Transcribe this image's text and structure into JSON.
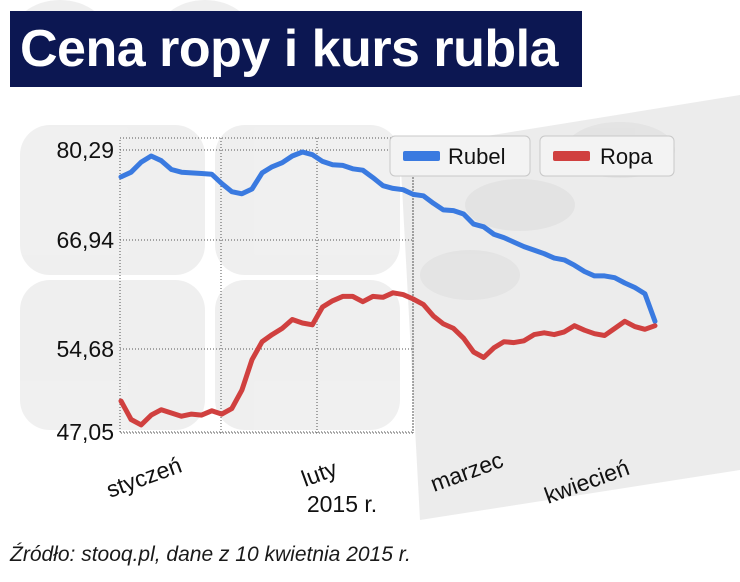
{
  "title": "Cena ropy i kurs rubla",
  "source": "Źródło: stooq.pl, dane z 10 kwietnia 2015 r.",
  "colors": {
    "rubel": "#3a7ae0",
    "ropa": "#d0403f",
    "title_bg": "#0c1752"
  },
  "chart_data": {
    "type": "line",
    "title": "Cena ropy i kurs rubla",
    "xlabel": "2015 r.",
    "ylabel": "",
    "x_ticks": [
      "styczeń",
      "luty",
      "marzec",
      "kwiecień"
    ],
    "y_ticks": [
      "80,29",
      "66,94",
      "54,68",
      "47,05"
    ],
    "legend": {
      "placement": "top-right",
      "entries": [
        "Rubel",
        "Ropa"
      ]
    },
    "grid": true,
    "series": [
      {
        "name": "Rubel",
        "color": "#3a7ae0",
        "values": [
          76.3,
          77.0,
          78.5,
          79.4,
          78.7,
          77.4,
          77.0,
          76.9,
          76.8,
          76.7,
          75.3,
          74.1,
          73.8,
          74.5,
          76.9,
          77.8,
          78.4,
          79.4,
          80.0,
          79.6,
          78.6,
          78.1,
          78.0,
          77.5,
          77.3,
          76.2,
          75.0,
          74.6,
          74.4,
          73.7,
          73.5,
          72.4,
          71.4,
          71.3,
          70.8,
          69.3,
          68.9,
          67.8,
          67.3,
          66.7,
          66.2,
          65.8,
          65.4,
          64.9,
          64.7,
          64.1,
          63.4,
          62.9,
          62.9,
          62.7,
          62.1,
          61.6,
          60.9,
          57.8
        ]
      },
      {
        "name": "Ropa",
        "color": "#d0403f",
        "values": [
          49.9,
          48.2,
          47.7,
          48.6,
          49.1,
          48.8,
          48.5,
          48.7,
          48.6,
          49.0,
          48.7,
          49.2,
          50.9,
          53.7,
          55.5,
          56.3,
          57.0,
          58.0,
          57.6,
          57.4,
          59.4,
          60.1,
          60.6,
          60.6,
          60.0,
          60.6,
          60.5,
          61.0,
          60.8,
          60.3,
          59.7,
          58.4,
          57.5,
          57.0,
          55.9,
          54.4,
          53.9,
          54.8,
          55.5,
          55.4,
          55.6,
          56.3,
          56.5,
          56.3,
          56.6,
          57.3,
          56.8,
          56.4,
          56.2,
          57.0,
          57.8,
          57.2,
          56.9,
          57.3
        ]
      }
    ]
  }
}
